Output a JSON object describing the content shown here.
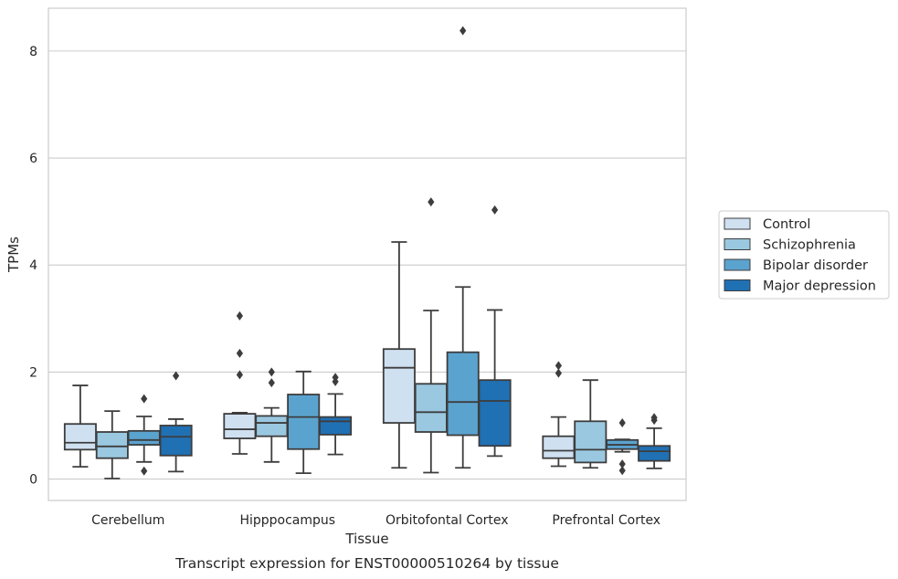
{
  "chart_data": {
    "type": "box",
    "caption": "Transcript expression for ENST00000510264 by tissue",
    "xlabel": "Tissue",
    "ylabel": "TPMs",
    "ylim": [
      -0.4,
      8.8
    ],
    "yticks": [
      0,
      2,
      4,
      6,
      8
    ],
    "grid": "horizontal",
    "legend_position": "right",
    "categories": [
      "Cerebellum",
      "Hipppocampus",
      "Orbitofontal Cortex",
      "Prefrontal Cortex"
    ],
    "series": [
      {
        "name": "Control",
        "color": "#cfe0f1",
        "boxes": [
          {
            "whislo": 0.23,
            "q1": 0.55,
            "med": 0.68,
            "q3": 1.03,
            "whishi": 1.75,
            "fliers": []
          },
          {
            "whislo": 0.47,
            "q1": 0.76,
            "med": 0.93,
            "q3": 1.22,
            "whishi": 1.24,
            "fliers": [
              1.95,
              2.35,
              3.05
            ]
          },
          {
            "whislo": 0.21,
            "q1": 1.05,
            "med": 2.08,
            "q3": 2.43,
            "whishi": 4.43,
            "fliers": []
          },
          {
            "whislo": 0.24,
            "q1": 0.39,
            "med": 0.53,
            "q3": 0.8,
            "whishi": 1.16,
            "fliers": [
              1.98,
              2.12
            ]
          }
        ]
      },
      {
        "name": "Schizophrenia",
        "color": "#9ac8e0",
        "boxes": [
          {
            "whislo": 0.01,
            "q1": 0.39,
            "med": 0.61,
            "q3": 0.88,
            "whishi": 1.27,
            "fliers": []
          },
          {
            "whislo": 0.32,
            "q1": 0.8,
            "med": 1.05,
            "q3": 1.18,
            "whishi": 1.33,
            "fliers": [
              1.8,
              2.0
            ]
          },
          {
            "whislo": 0.12,
            "q1": 0.88,
            "med": 1.25,
            "q3": 1.78,
            "whishi": 3.15,
            "fliers": [
              5.18
            ]
          },
          {
            "whislo": 0.21,
            "q1": 0.31,
            "med": 0.55,
            "q3": 1.08,
            "whishi": 1.85,
            "fliers": []
          }
        ]
      },
      {
        "name": "Bipolar disorder",
        "color": "#5ba3cf",
        "boxes": [
          {
            "whislo": 0.32,
            "q1": 0.64,
            "med": 0.73,
            "q3": 0.9,
            "whishi": 1.17,
            "fliers": [
              0.15,
              1.5
            ]
          },
          {
            "whislo": 0.11,
            "q1": 0.56,
            "med": 1.16,
            "q3": 1.58,
            "whishi": 2.01,
            "fliers": []
          },
          {
            "whislo": 0.21,
            "q1": 0.82,
            "med": 1.44,
            "q3": 2.37,
            "whishi": 3.59,
            "fliers": [
              8.38
            ]
          },
          {
            "whislo": 0.51,
            "q1": 0.56,
            "med": 0.64,
            "q3": 0.73,
            "whishi": 0.74,
            "fliers": [
              0.16,
              0.28,
              1.05
            ]
          }
        ]
      },
      {
        "name": "Major depression",
        "color": "#2070b4",
        "boxes": [
          {
            "whislo": 0.14,
            "q1": 0.44,
            "med": 0.79,
            "q3": 1.0,
            "whishi": 1.12,
            "fliers": [
              1.93
            ]
          },
          {
            "whislo": 0.46,
            "q1": 0.83,
            "med": 1.08,
            "q3": 1.16,
            "whishi": 1.59,
            "fliers": [
              1.82,
              1.9
            ]
          },
          {
            "whislo": 0.43,
            "q1": 0.62,
            "med": 1.46,
            "q3": 1.85,
            "whishi": 3.16,
            "fliers": [
              5.03
            ]
          },
          {
            "whislo": 0.2,
            "q1": 0.34,
            "med": 0.52,
            "q3": 0.62,
            "whishi": 0.95,
            "fliers": [
              1.1,
              1.15
            ]
          }
        ]
      }
    ]
  }
}
